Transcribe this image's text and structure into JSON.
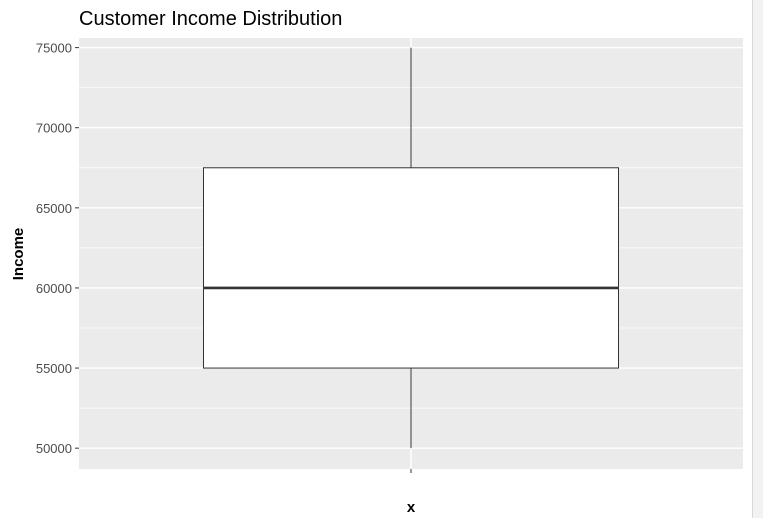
{
  "chart_data": {
    "type": "boxplot",
    "title": "Customer Income Distribution",
    "xlabel": "x",
    "ylabel": "Income",
    "ylim": [
      48700,
      75600
    ],
    "y_ticks": [
      50000,
      55000,
      60000,
      65000,
      70000,
      75000
    ],
    "y_tick_labels": [
      "50000",
      "55000",
      "60000",
      "65000",
      "70000",
      "75000"
    ],
    "boxes": [
      {
        "min": 50000,
        "q1": 55000,
        "median": 60000,
        "q3": 67500,
        "max": 75000
      }
    ],
    "grid": true,
    "legend": "none",
    "colors": {
      "panel": "#EBEBEB",
      "grid": "#FFFFFF",
      "box_fill": "#FFFFFF",
      "box_stroke": "#333333",
      "text": "#000000",
      "tick_text": "#4D4D4D"
    }
  }
}
